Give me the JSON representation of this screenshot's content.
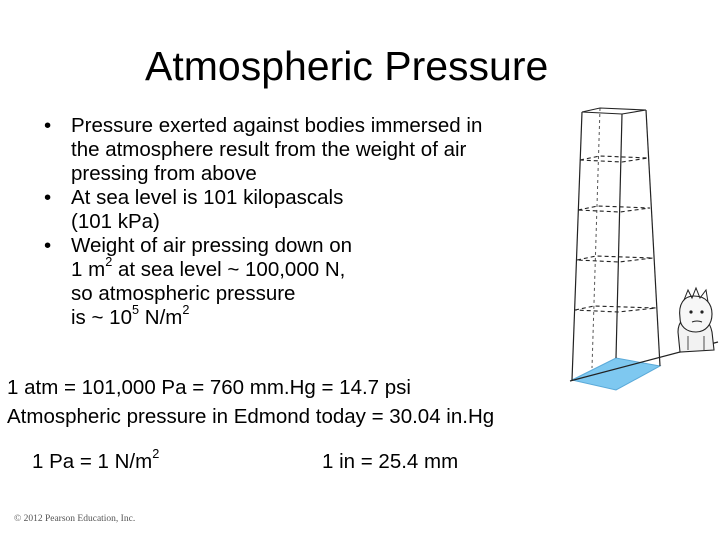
{
  "slide": {
    "title": "Atmospheric Pressure",
    "bullet_symbol": "•",
    "bullets": [
      {
        "lines": [
          "Pressure exerted against bodies immersed in",
          "the atmosphere result from the weight of air",
          "pressing from above"
        ]
      },
      {
        "lines": [
          "At sea level is 101 kilopascals",
          "(101 kPa)"
        ]
      },
      {
        "line1": "Weight of air pressing down on",
        "line2_pre": "1 m",
        "line2_sup": "2",
        "line2_post": " at sea level ~ 100,000 N,",
        "line3": "so atmospheric pressure",
        "line4_pre": "is ~ 10",
        "line4_sup": "5",
        "line4_mid": " N/m",
        "line4_sup2": "2"
      }
    ],
    "equation1": "1 atm = 101,000 Pa = 760 mm.Hg = 14.7 psi",
    "equation2": "Atmospheric pressure in Edmond today = 30.04 in.Hg",
    "unit_pa": {
      "pre": "1 Pa = 1 N/m",
      "sup": "2"
    },
    "unit_in": "1 in = 25.4 mm",
    "copyright": "© 2012 Pearson Education, Inc."
  },
  "illustration": {
    "icons": [
      "air-column-icon",
      "person-icon"
    ],
    "colors": {
      "base_fill": "#7ec8f0",
      "lines": "#222222",
      "face": "#f2f2f2"
    }
  }
}
